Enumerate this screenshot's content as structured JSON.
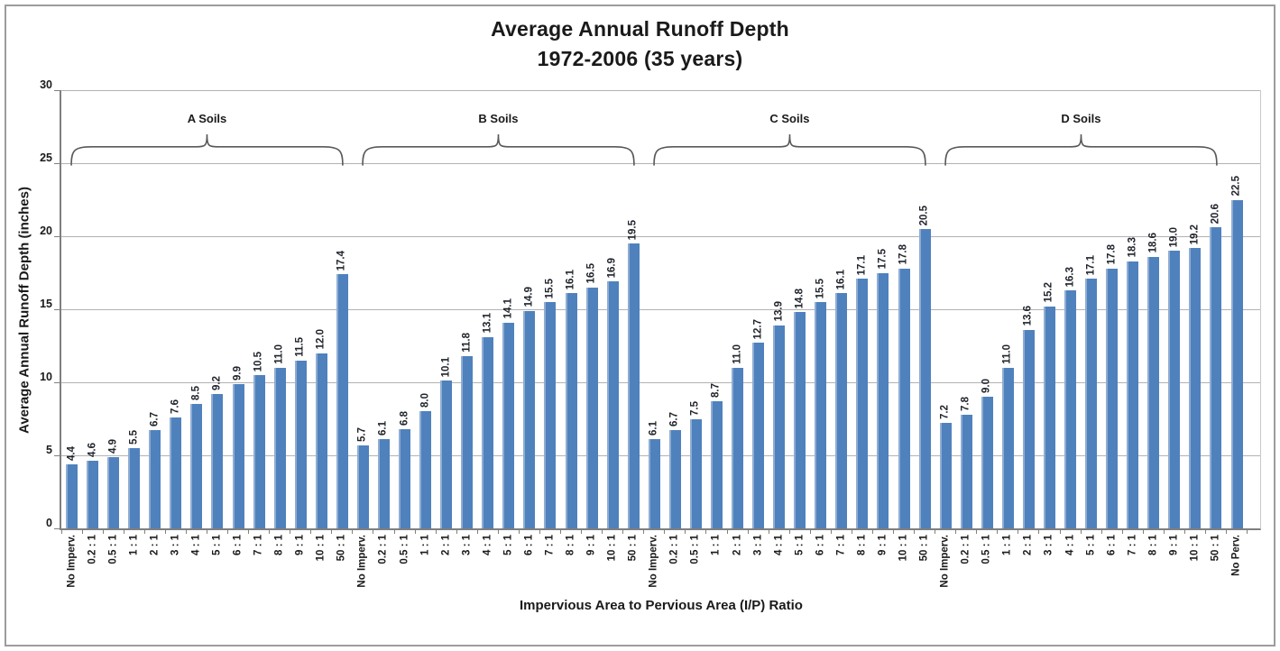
{
  "page": {
    "background": "#ffffff",
    "frame_border_color": "#9c9c9c"
  },
  "chart_data": {
    "type": "bar",
    "title": "Average Annual Runoff Depth",
    "subtitle": "1972-2006 (35 years)",
    "xlabel": "Impervious Area to Pervious Area (I/P) Ratio",
    "ylabel": "Average Annual Runoff Depth (inches)",
    "ylim": [
      0,
      30
    ],
    "yticks": [
      0,
      5,
      10,
      15,
      20,
      25,
      30
    ],
    "grid": true,
    "legend": "none",
    "bar_color": "#4f81bd",
    "gridline_color": "#b2b2b2",
    "axis_color": "#7f7f7f",
    "value_label_decimals": 1,
    "groups": [
      {
        "label": "A Soils",
        "categories": [
          "No Imperv.",
          "0.2 : 1",
          "0.5 : 1",
          "1 : 1",
          "2 : 1",
          "3 : 1",
          "4 : 1",
          "5 : 1",
          "6 : 1",
          "7 : 1",
          "8 : 1",
          "9 : 1",
          "10 : 1",
          "50 : 1"
        ],
        "values": [
          4.4,
          4.6,
          4.9,
          5.5,
          6.7,
          7.6,
          8.5,
          9.2,
          9.9,
          10.5,
          11.0,
          11.5,
          12.0,
          17.4
        ]
      },
      {
        "label": "B Soils",
        "categories": [
          "No Imperv.",
          "0.2 : 1",
          "0.5 : 1",
          "1 : 1",
          "2 : 1",
          "3 : 1",
          "4 : 1",
          "5 : 1",
          "6 : 1",
          "7 : 1",
          "8 : 1",
          "9 : 1",
          "10 : 1",
          "50 : 1"
        ],
        "values": [
          5.7,
          6.1,
          6.8,
          8.0,
          10.1,
          11.8,
          13.1,
          14.1,
          14.9,
          15.5,
          16.1,
          16.5,
          16.9,
          19.5
        ]
      },
      {
        "label": "C Soils",
        "categories": [
          "No Imperv.",
          "0.2 : 1",
          "0.5 : 1",
          "1 : 1",
          "2 : 1",
          "3 : 1",
          "4 : 1",
          "5 : 1",
          "6 : 1",
          "7 : 1",
          "8 : 1",
          "9 : 1",
          "10 : 1",
          "50 : 1"
        ],
        "values": [
          6.1,
          6.7,
          7.5,
          8.7,
          11.0,
          12.7,
          13.9,
          14.8,
          15.5,
          16.1,
          17.1,
          17.5,
          17.8,
          20.5
        ]
      },
      {
        "label": "D Soils",
        "categories": [
          "No Imperv.",
          "0.2 : 1",
          "0.5 : 1",
          "1 : 1",
          "2 : 1",
          "3 : 1",
          "4 : 1",
          "5 : 1",
          "6 : 1",
          "7 : 1",
          "8 : 1",
          "9 : 1",
          "10 : 1",
          "50 : 1"
        ],
        "values": [
          7.2,
          7.8,
          9.0,
          11.0,
          13.6,
          15.2,
          16.3,
          17.1,
          17.8,
          18.3,
          18.6,
          19.0,
          19.2,
          20.6
        ]
      },
      {
        "label": "",
        "categories": [
          "No Perv."
        ],
        "values": [
          22.5
        ]
      }
    ]
  }
}
